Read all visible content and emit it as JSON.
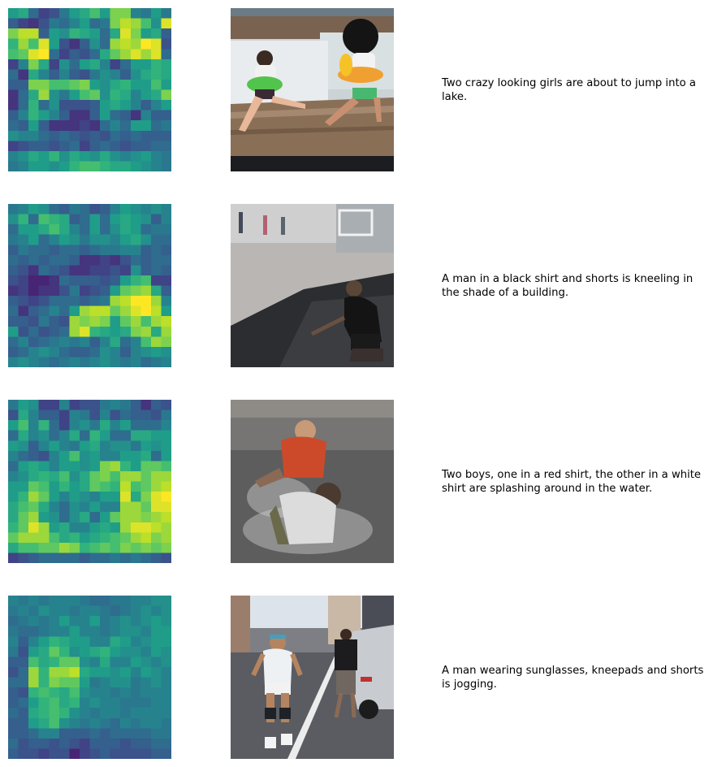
{
  "rows": [
    {
      "caption": "Two crazy looking girls are about to jump into a lake.",
      "heatmap": [
        [
          0.55,
          0.6,
          0.35,
          0.2,
          0.25,
          0.4,
          0.55,
          0.6,
          0.7,
          0.55,
          0.8,
          0.8,
          0.45,
          0.4,
          0.55,
          0.4
        ],
        [
          0.3,
          0.2,
          0.15,
          0.25,
          0.4,
          0.35,
          0.45,
          0.55,
          0.35,
          0.4,
          0.8,
          0.9,
          0.85,
          0.7,
          0.5,
          0.95
        ],
        [
          0.8,
          0.9,
          0.9,
          0.3,
          0.55,
          0.5,
          0.65,
          0.6,
          0.55,
          0.35,
          0.6,
          0.95,
          0.8,
          0.55,
          0.6,
          0.3
        ],
        [
          0.65,
          0.85,
          0.7,
          0.95,
          0.55,
          0.25,
          0.15,
          0.3,
          0.5,
          0.35,
          0.85,
          0.9,
          0.85,
          1.0,
          0.95,
          0.25
        ],
        [
          0.7,
          0.75,
          0.95,
          1.0,
          0.35,
          0.2,
          0.3,
          0.25,
          0.35,
          0.6,
          0.75,
          0.85,
          0.95,
          0.85,
          0.95,
          0.35
        ],
        [
          0.2,
          0.45,
          0.8,
          0.6,
          0.2,
          0.5,
          0.35,
          0.55,
          0.6,
          0.45,
          0.2,
          0.35,
          0.55,
          0.55,
          0.65,
          0.6
        ],
        [
          0.35,
          0.15,
          0.6,
          0.45,
          0.3,
          0.45,
          0.3,
          0.25,
          0.4,
          0.5,
          0.45,
          0.3,
          0.5,
          0.6,
          0.65,
          0.6
        ],
        [
          0.3,
          0.3,
          0.8,
          0.8,
          0.7,
          0.7,
          0.75,
          0.8,
          0.55,
          0.5,
          0.6,
          0.65,
          0.55,
          0.55,
          0.7,
          0.55
        ],
        [
          0.15,
          0.35,
          0.6,
          0.85,
          0.5,
          0.4,
          0.55,
          0.7,
          0.75,
          0.5,
          0.65,
          0.6,
          0.45,
          0.55,
          0.6,
          0.8
        ],
        [
          0.15,
          0.35,
          0.65,
          0.35,
          0.5,
          0.25,
          0.25,
          0.25,
          0.3,
          0.55,
          0.6,
          0.55,
          0.45,
          0.3,
          0.45,
          0.55
        ],
        [
          0.3,
          0.45,
          0.65,
          0.55,
          0.45,
          0.3,
          0.15,
          0.15,
          0.3,
          0.55,
          0.35,
          0.3,
          0.15,
          0.45,
          0.3,
          0.3
        ],
        [
          0.35,
          0.3,
          0.55,
          0.3,
          0.15,
          0.15,
          0.15,
          0.2,
          0.15,
          0.35,
          0.45,
          0.35,
          0.55,
          0.55,
          0.35,
          0.4
        ],
        [
          0.5,
          0.45,
          0.45,
          0.35,
          0.3,
          0.35,
          0.3,
          0.25,
          0.3,
          0.25,
          0.35,
          0.3,
          0.35,
          0.3,
          0.3,
          0.3
        ],
        [
          0.2,
          0.25,
          0.3,
          0.3,
          0.25,
          0.3,
          0.35,
          0.2,
          0.3,
          0.35,
          0.3,
          0.25,
          0.3,
          0.3,
          0.35,
          0.35
        ],
        [
          0.45,
          0.5,
          0.6,
          0.55,
          0.65,
          0.5,
          0.6,
          0.55,
          0.5,
          0.6,
          0.5,
          0.45,
          0.5,
          0.55,
          0.45,
          0.4
        ],
        [
          0.4,
          0.45,
          0.55,
          0.55,
          0.5,
          0.55,
          0.65,
          0.7,
          0.7,
          0.65,
          0.6,
          0.6,
          0.55,
          0.5,
          0.45,
          0.4
        ]
      ]
    },
    {
      "caption": "A man in a black shirt and shorts is kneeling in the shade of a building.",
      "heatmap": [
        [
          0.4,
          0.45,
          0.55,
          0.5,
          0.35,
          0.3,
          0.4,
          0.35,
          0.25,
          0.3,
          0.45,
          0.55,
          0.5,
          0.45,
          0.5,
          0.45
        ],
        [
          0.5,
          0.65,
          0.35,
          0.7,
          0.65,
          0.6,
          0.3,
          0.35,
          0.55,
          0.35,
          0.55,
          0.6,
          0.55,
          0.5,
          0.3,
          0.45
        ],
        [
          0.35,
          0.55,
          0.55,
          0.6,
          0.7,
          0.6,
          0.45,
          0.35,
          0.55,
          0.35,
          0.5,
          0.6,
          0.55,
          0.35,
          0.4,
          0.4
        ],
        [
          0.4,
          0.45,
          0.55,
          0.35,
          0.45,
          0.55,
          0.5,
          0.4,
          0.5,
          0.5,
          0.45,
          0.55,
          0.6,
          0.5,
          0.35,
          0.35
        ],
        [
          0.3,
          0.4,
          0.35,
          0.35,
          0.3,
          0.35,
          0.35,
          0.3,
          0.35,
          0.4,
          0.4,
          0.45,
          0.45,
          0.3,
          0.35,
          0.3
        ],
        [
          0.35,
          0.3,
          0.35,
          0.3,
          0.35,
          0.35,
          0.3,
          0.15,
          0.15,
          0.2,
          0.15,
          0.25,
          0.35,
          0.3,
          0.35,
          0.35
        ],
        [
          0.3,
          0.25,
          0.15,
          0.35,
          0.3,
          0.25,
          0.15,
          0.15,
          0.2,
          0.2,
          0.25,
          0.2,
          0.5,
          0.3,
          0.35,
          0.3
        ],
        [
          0.25,
          0.2,
          0.1,
          0.1,
          0.15,
          0.35,
          0.3,
          0.3,
          0.3,
          0.25,
          0.3,
          0.55,
          0.65,
          0.7,
          0.2,
          0.2
        ],
        [
          0.15,
          0.2,
          0.1,
          0.15,
          0.15,
          0.25,
          0.4,
          0.2,
          0.25,
          0.3,
          0.55,
          0.75,
          0.8,
          0.85,
          0.6,
          0.3
        ],
        [
          0.3,
          0.25,
          0.2,
          0.25,
          0.35,
          0.35,
          0.35,
          0.3,
          0.35,
          0.4,
          0.85,
          0.9,
          1.0,
          1.0,
          0.85,
          0.45
        ],
        [
          0.35,
          0.15,
          0.3,
          0.35,
          0.45,
          0.35,
          0.55,
          0.85,
          0.9,
          0.9,
          0.75,
          0.85,
          0.95,
          1.0,
          0.9,
          0.55
        ],
        [
          0.3,
          0.3,
          0.25,
          0.4,
          0.3,
          0.25,
          0.85,
          0.8,
          0.85,
          0.8,
          0.55,
          0.75,
          0.85,
          0.7,
          0.85,
          0.9
        ],
        [
          0.55,
          0.25,
          0.35,
          0.25,
          0.3,
          0.35,
          0.85,
          0.95,
          0.65,
          0.6,
          0.55,
          0.6,
          0.8,
          0.85,
          0.6,
          0.85
        ],
        [
          0.35,
          0.45,
          0.3,
          0.35,
          0.4,
          0.45,
          0.4,
          0.45,
          0.3,
          0.45,
          0.6,
          0.35,
          0.45,
          0.7,
          0.85,
          0.8
        ],
        [
          0.3,
          0.35,
          0.45,
          0.5,
          0.45,
          0.35,
          0.3,
          0.3,
          0.35,
          0.5,
          0.45,
          0.3,
          0.45,
          0.5,
          0.55,
          0.5
        ],
        [
          0.45,
          0.5,
          0.45,
          0.4,
          0.35,
          0.4,
          0.45,
          0.4,
          0.45,
          0.5,
          0.45,
          0.4,
          0.45,
          0.35,
          0.4,
          0.45
        ]
      ]
    },
    {
      "caption": "Two boys, one in a red shirt, the other in a white shirt are splashing around in the water.",
      "heatmap": [
        [
          0.4,
          0.55,
          0.5,
          0.2,
          0.2,
          0.45,
          0.2,
          0.25,
          0.25,
          0.4,
          0.45,
          0.4,
          0.3,
          0.15,
          0.3,
          0.25
        ],
        [
          0.25,
          0.6,
          0.45,
          0.3,
          0.3,
          0.2,
          0.45,
          0.4,
          0.25,
          0.45,
          0.25,
          0.35,
          0.3,
          0.3,
          0.25,
          0.4
        ],
        [
          0.55,
          0.7,
          0.45,
          0.65,
          0.35,
          0.2,
          0.45,
          0.5,
          0.4,
          0.6,
          0.45,
          0.55,
          0.35,
          0.35,
          0.35,
          0.45
        ],
        [
          0.35,
          0.6,
          0.45,
          0.5,
          0.35,
          0.45,
          0.6,
          0.35,
          0.65,
          0.55,
          0.35,
          0.35,
          0.6,
          0.6,
          0.55,
          0.55
        ],
        [
          0.55,
          0.5,
          0.3,
          0.45,
          0.55,
          0.45,
          0.4,
          0.55,
          0.6,
          0.45,
          0.5,
          0.5,
          0.4,
          0.55,
          0.5,
          0.55
        ],
        [
          0.45,
          0.35,
          0.3,
          0.25,
          0.45,
          0.55,
          0.7,
          0.5,
          0.55,
          0.45,
          0.45,
          0.55,
          0.55,
          0.6,
          0.35,
          0.55
        ],
        [
          0.35,
          0.55,
          0.6,
          0.55,
          0.45,
          0.55,
          0.55,
          0.5,
          0.55,
          0.8,
          0.85,
          0.65,
          0.55,
          0.75,
          0.75,
          0.7
        ],
        [
          0.45,
          0.5,
          0.6,
          0.65,
          0.6,
          0.7,
          0.5,
          0.6,
          0.75,
          0.8,
          0.7,
          0.85,
          0.85,
          0.75,
          0.85,
          0.85
        ],
        [
          0.55,
          0.55,
          0.75,
          0.7,
          0.55,
          0.65,
          0.55,
          0.6,
          0.75,
          0.7,
          0.65,
          0.9,
          0.7,
          0.75,
          0.85,
          0.9
        ],
        [
          0.55,
          0.65,
          0.85,
          0.75,
          0.55,
          0.45,
          0.55,
          0.5,
          0.45,
          0.55,
          0.55,
          0.95,
          0.6,
          0.8,
          0.95,
          1.0
        ],
        [
          0.6,
          0.7,
          0.75,
          0.6,
          0.45,
          0.35,
          0.5,
          0.45,
          0.55,
          0.45,
          0.45,
          0.85,
          0.85,
          0.75,
          0.95,
          0.95
        ],
        [
          0.6,
          0.75,
          0.85,
          0.55,
          0.5,
          0.35,
          0.5,
          0.6,
          0.35,
          0.55,
          0.75,
          0.85,
          0.85,
          0.8,
          0.85,
          0.9
        ],
        [
          0.65,
          0.75,
          0.95,
          0.85,
          0.55,
          0.6,
          0.45,
          0.45,
          0.55,
          0.6,
          0.55,
          0.85,
          0.95,
          0.95,
          0.9,
          0.85
        ],
        [
          0.75,
          0.85,
          0.85,
          0.85,
          0.7,
          0.6,
          0.65,
          0.55,
          0.6,
          0.65,
          0.7,
          0.75,
          0.85,
          0.9,
          0.8,
          0.85
        ],
        [
          0.6,
          0.7,
          0.7,
          0.75,
          0.75,
          0.85,
          0.8,
          0.65,
          0.7,
          0.75,
          0.7,
          0.8,
          0.75,
          0.8,
          0.75,
          0.8
        ],
        [
          0.2,
          0.25,
          0.3,
          0.35,
          0.35,
          0.35,
          0.35,
          0.3,
          0.35,
          0.35,
          0.4,
          0.35,
          0.4,
          0.35,
          0.3,
          0.25
        ]
      ]
    },
    {
      "caption": "A man wearing sunglasses, kneepads and shorts is jogging.",
      "heatmap": [
        [
          0.45,
          0.4,
          0.45,
          0.4,
          0.45,
          0.45,
          0.45,
          0.4,
          0.35,
          0.35,
          0.4,
          0.4,
          0.45,
          0.45,
          0.5,
          0.5
        ],
        [
          0.4,
          0.45,
          0.4,
          0.5,
          0.45,
          0.45,
          0.4,
          0.45,
          0.45,
          0.4,
          0.35,
          0.4,
          0.45,
          0.5,
          0.45,
          0.5
        ],
        [
          0.35,
          0.4,
          0.45,
          0.4,
          0.45,
          0.55,
          0.45,
          0.45,
          0.55,
          0.4,
          0.45,
          0.5,
          0.45,
          0.5,
          0.55,
          0.5
        ],
        [
          0.4,
          0.35,
          0.35,
          0.4,
          0.45,
          0.45,
          0.55,
          0.45,
          0.45,
          0.4,
          0.45,
          0.5,
          0.5,
          0.45,
          0.55,
          0.55
        ],
        [
          0.45,
          0.3,
          0.45,
          0.55,
          0.65,
          0.6,
          0.55,
          0.55,
          0.45,
          0.45,
          0.6,
          0.55,
          0.45,
          0.5,
          0.55,
          0.55
        ],
        [
          0.4,
          0.25,
          0.55,
          0.6,
          0.75,
          0.65,
          0.5,
          0.55,
          0.6,
          0.65,
          0.55,
          0.5,
          0.5,
          0.45,
          0.55,
          0.5
        ],
        [
          0.3,
          0.3,
          0.7,
          0.6,
          0.65,
          0.75,
          0.75,
          0.5,
          0.45,
          0.6,
          0.45,
          0.45,
          0.55,
          0.5,
          0.45,
          0.5
        ],
        [
          0.25,
          0.35,
          0.85,
          0.65,
          0.85,
          0.85,
          0.9,
          0.6,
          0.55,
          0.55,
          0.5,
          0.55,
          0.45,
          0.55,
          0.5,
          0.45
        ],
        [
          0.35,
          0.35,
          0.85,
          0.65,
          0.8,
          0.75,
          0.75,
          0.55,
          0.4,
          0.45,
          0.5,
          0.5,
          0.4,
          0.45,
          0.5,
          0.45
        ],
        [
          0.3,
          0.25,
          0.65,
          0.7,
          0.65,
          0.6,
          0.7,
          0.5,
          0.45,
          0.45,
          0.4,
          0.45,
          0.4,
          0.45,
          0.45,
          0.45
        ],
        [
          0.3,
          0.35,
          0.55,
          0.65,
          0.7,
          0.6,
          0.65,
          0.45,
          0.5,
          0.45,
          0.45,
          0.4,
          0.4,
          0.4,
          0.45,
          0.45
        ],
        [
          0.35,
          0.3,
          0.6,
          0.65,
          0.7,
          0.65,
          0.5,
          0.45,
          0.4,
          0.45,
          0.45,
          0.4,
          0.45,
          0.45,
          0.45,
          0.45
        ],
        [
          0.3,
          0.3,
          0.55,
          0.6,
          0.7,
          0.5,
          0.45,
          0.4,
          0.45,
          0.4,
          0.35,
          0.45,
          0.4,
          0.45,
          0.45,
          0.4
        ],
        [
          0.3,
          0.3,
          0.35,
          0.45,
          0.45,
          0.3,
          0.3,
          0.3,
          0.35,
          0.3,
          0.35,
          0.35,
          0.35,
          0.35,
          0.4,
          0.4
        ],
        [
          0.35,
          0.25,
          0.3,
          0.3,
          0.25,
          0.3,
          0.25,
          0.2,
          0.3,
          0.3,
          0.3,
          0.25,
          0.3,
          0.3,
          0.35,
          0.35
        ],
        [
          0.3,
          0.25,
          0.25,
          0.2,
          0.25,
          0.25,
          0.1,
          0.2,
          0.25,
          0.3,
          0.25,
          0.25,
          0.25,
          0.25,
          0.3,
          0.3
        ]
      ]
    }
  ]
}
